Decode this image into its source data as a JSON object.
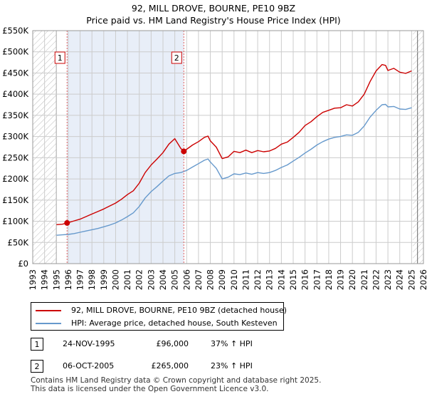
{
  "title_line1": "92, MILL DROVE, BOURNE, PE10 9BZ",
  "title_line2": "Price paid vs. HM Land Registry's House Price Index (HPI)",
  "colors": {
    "property": "#cc0000",
    "hpi": "#6699cc",
    "shade": "#e8eef8",
    "grid": "#cccccc",
    "marker_line": "#e06060"
  },
  "chart_data": {
    "type": "line",
    "x_range": [
      1993,
      2026
    ],
    "ylim": [
      0,
      550000
    ],
    "y_ticks": [
      0,
      50000,
      100000,
      150000,
      200000,
      250000,
      300000,
      350000,
      400000,
      450000,
      500000,
      550000
    ],
    "y_tick_labels": [
      "£0",
      "£50K",
      "£100K",
      "£150K",
      "£200K",
      "£250K",
      "£300K",
      "£350K",
      "£400K",
      "£450K",
      "£500K",
      "£550K"
    ],
    "x_ticks": [
      "1993",
      "1994",
      "1995",
      "1996",
      "1997",
      "1998",
      "1999",
      "2000",
      "2001",
      "2002",
      "2003",
      "2004",
      "2005",
      "2006",
      "2007",
      "2008",
      "2009",
      "2010",
      "2011",
      "2012",
      "2013",
      "2014",
      "2015",
      "2016",
      "2017",
      "2018",
      "2019",
      "2020",
      "2021",
      "2022",
      "2023",
      "2024",
      "2025",
      "2026"
    ],
    "data_start": 1995.0,
    "data_end": 2025.5,
    "hatched_regions": [
      [
        1993,
        1995.0
      ],
      [
        2025.1,
        2026
      ]
    ],
    "highlight_region": [
      1995.9,
      2005.76
    ],
    "series": [
      {
        "name": "92, MILL DROVE, BOURNE, PE10 9BZ (detached house)",
        "key": "property",
        "x": [
          1995.0,
          1995.5,
          1995.9,
          1996.5,
          1997.0,
          1997.5,
          1998.0,
          1998.5,
          1999.0,
          1999.5,
          2000.0,
          2000.5,
          2001.0,
          2001.5,
          2002.0,
          2002.5,
          2003.0,
          2003.5,
          2004.0,
          2004.5,
          2005.0,
          2005.5,
          2005.76,
          2006.0,
          2006.5,
          2007.0,
          2007.5,
          2007.8,
          2008.0,
          2008.5,
          2009.0,
          2009.5,
          2010.0,
          2010.5,
          2011.0,
          2011.5,
          2012.0,
          2012.5,
          2013.0,
          2013.5,
          2014.0,
          2014.5,
          2015.0,
          2015.5,
          2016.0,
          2016.5,
          2017.0,
          2017.5,
          2018.0,
          2018.5,
          2019.0,
          2019.5,
          2020.0,
          2020.5,
          2021.0,
          2021.5,
          2022.0,
          2022.5,
          2022.8,
          2023.0,
          2023.5,
          2024.0,
          2024.5,
          2025.0
        ],
        "y": [
          92000,
          93000,
          96000,
          101000,
          105000,
          111000,
          117000,
          123000,
          129000,
          136000,
          143000,
          152000,
          163000,
          172000,
          190000,
          215000,
          233000,
          247000,
          262000,
          282000,
          295000,
          272000,
          265000,
          270000,
          280000,
          288000,
          298000,
          301000,
          290000,
          275000,
          248000,
          252000,
          265000,
          262000,
          268000,
          262000,
          267000,
          264000,
          266000,
          272000,
          282000,
          287000,
          298000,
          310000,
          326000,
          335000,
          347000,
          357000,
          362000,
          367000,
          368000,
          375000,
          372000,
          382000,
          400000,
          430000,
          455000,
          470000,
          468000,
          456000,
          461000,
          452000,
          449000,
          455000
        ]
      },
      {
        "name": "HPI: Average price, detached house, South Kesteven",
        "key": "hpi",
        "x": [
          1995.0,
          1995.5,
          1996.0,
          1996.5,
          1997.0,
          1997.5,
          1998.0,
          1998.5,
          1999.0,
          1999.5,
          2000.0,
          2000.5,
          2001.0,
          2001.5,
          2002.0,
          2002.5,
          2003.0,
          2003.5,
          2004.0,
          2004.5,
          2005.0,
          2005.5,
          2006.0,
          2006.5,
          2007.0,
          2007.5,
          2007.8,
          2008.0,
          2008.5,
          2009.0,
          2009.5,
          2010.0,
          2010.5,
          2011.0,
          2011.5,
          2012.0,
          2012.5,
          2013.0,
          2013.5,
          2014.0,
          2014.5,
          2015.0,
          2015.5,
          2016.0,
          2016.5,
          2017.0,
          2017.5,
          2018.0,
          2018.5,
          2019.0,
          2019.5,
          2020.0,
          2020.5,
          2021.0,
          2021.5,
          2022.0,
          2022.5,
          2022.8,
          2023.0,
          2023.5,
          2024.0,
          2024.5,
          2025.0
        ],
        "y": [
          67000,
          68000,
          69000,
          71000,
          74000,
          77000,
          80000,
          83000,
          87000,
          91000,
          96000,
          103000,
          111000,
          120000,
          135000,
          155000,
          170000,
          182000,
          195000,
          207000,
          213000,
          215000,
          220000,
          228000,
          236000,
          244000,
          247000,
          240000,
          225000,
          200000,
          204000,
          212000,
          210000,
          214000,
          211000,
          215000,
          213000,
          215000,
          220000,
          227000,
          233000,
          242000,
          251000,
          261000,
          270000,
          280000,
          288000,
          294000,
          298000,
          300000,
          304000,
          303000,
          310000,
          325000,
          346000,
          362000,
          375000,
          376000,
          370000,
          371000,
          365000,
          364000,
          368000
        ]
      }
    ],
    "sales": [
      {
        "label": "1",
        "year": 1995.9,
        "price": 96000
      },
      {
        "label": "2",
        "year": 2005.76,
        "price": 265000
      }
    ]
  },
  "legend": {
    "property_label": "92, MILL DROVE, BOURNE, PE10 9BZ (detached house)",
    "hpi_label": "HPI: Average price, detached house, South Kesteven"
  },
  "transactions": [
    {
      "num": "1",
      "date": "24-NOV-1995",
      "price": "£96,000",
      "hpi": "37% ↑ HPI"
    },
    {
      "num": "2",
      "date": "06-OCT-2005",
      "price": "£265,000",
      "hpi": "23% ↑ HPI"
    }
  ],
  "footer_line1": "Contains HM Land Registry data © Crown copyright and database right 2025.",
  "footer_line2": "This data is licensed under the Open Government Licence v3.0."
}
